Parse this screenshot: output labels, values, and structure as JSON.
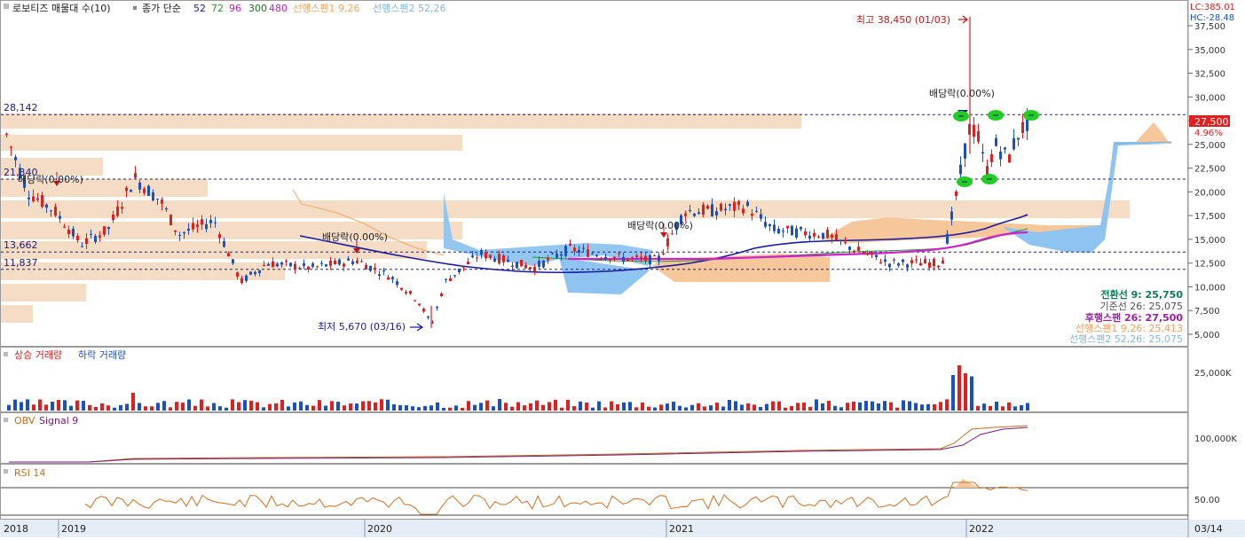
{
  "chart_data": {
    "type": "candlestick",
    "header": {
      "name": "로보티즈 매물대 수(10)",
      "ma_label": "종가 단순",
      "ma_periods": [
        "52",
        "72",
        "96",
        "300",
        "480"
      ],
      "span1": "선행스팬1 9,26",
      "span2": "선행스팬2 52,26",
      "ma_colors": [
        "#1a1aa0",
        "#2a9a2a",
        "#c020c0",
        "#207020",
        "#c020c0"
      ]
    },
    "corner": {
      "lc": "LC:385.01",
      "hc": "HC:-28.48"
    },
    "price_axis": {
      "ylim": [
        4000,
        40000
      ],
      "ticks": [
        5000,
        7500,
        10000,
        12500,
        15000,
        17500,
        20000,
        22500,
        25000,
        27500,
        30000,
        32500,
        35000,
        37500
      ],
      "tick_labels": [
        "5,000",
        "7,500",
        "10,000",
        "12,500",
        "15,000",
        "17,500",
        "20,000",
        "22,500",
        "25,000",
        "27,500",
        "30,000",
        "32,500",
        "35,000",
        "37,500"
      ]
    },
    "levels": [
      {
        "value": 28142,
        "label": "28,142"
      },
      {
        "value": 21340,
        "label": "21,340"
      },
      {
        "value": 13662,
        "label": "13,662"
      },
      {
        "value": 11837,
        "label": "11,837"
      }
    ],
    "current": {
      "price": "27,500",
      "change": "4.96%"
    },
    "annotations": {
      "high": "최고 38,450 (01/03)",
      "low": "최저 5,670 (03/16)",
      "div1": "배당락(0.00%)",
      "div2": "배당락(0.00%)",
      "div3": "배당락(0.00%)",
      "div4": "배당락(0.00%)"
    },
    "ichimoku": [
      {
        "label": "전환선 9: 25,750",
        "color": "#0a7a5a"
      },
      {
        "label": "기준선 26: 25,075",
        "color": "#505050"
      },
      {
        "label": "후행스팬 26: 27,500",
        "color": "#9a20a0"
      },
      {
        "label": "선행스팬1 9,26: 25,413",
        "color": "#f0a060"
      },
      {
        "label": "선행스팬2 52,26: 25,075",
        "color": "#80b8e0"
      }
    ],
    "volume": {
      "title_up": "상승 거래량",
      "title_down": "하락 거래량",
      "tick": "25,000K"
    },
    "obv": {
      "title": "OBV",
      "signal": "Signal 9",
      "tick": "100,000K"
    },
    "rsi": {
      "title": "RSI 14",
      "tick": "50.00"
    },
    "x_labels": [
      "2018",
      "2019",
      "2020",
      "2021",
      "2022",
      "03/14"
    ],
    "colors": {
      "up": "#e02020",
      "down": "#1a50c0",
      "profile": "#f5dcc4",
      "cloud_up": "#f6c79a",
      "cloud_down": "#8ec4ef",
      "grid": "#1a1aa0"
    }
  }
}
